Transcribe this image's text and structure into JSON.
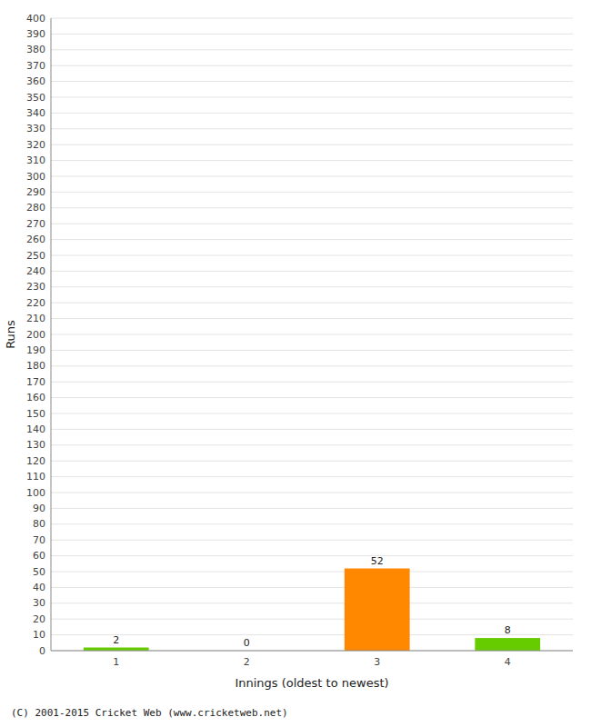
{
  "chart_data": {
    "type": "bar",
    "categories": [
      1,
      2,
      3,
      4
    ],
    "values": [
      2,
      0,
      52,
      8
    ],
    "colors": [
      "#66cc00",
      "#66cc00",
      "#ff8800",
      "#66cc00"
    ],
    "xlabel": "Innings (oldest to newest)",
    "ylabel": "Runs",
    "ylim": [
      0,
      400
    ],
    "yticks": [
      0,
      10,
      20,
      30,
      40,
      50,
      60,
      70,
      80,
      90,
      100,
      110,
      120,
      130,
      140,
      150,
      160,
      170,
      180,
      190,
      200,
      210,
      220,
      230,
      240,
      250,
      260,
      270,
      280,
      290,
      300,
      310,
      320,
      330,
      340,
      350,
      360,
      370,
      380,
      390,
      400
    ],
    "grid": true,
    "data_labels": true,
    "annotations": [
      "(C) 2001-2015 Cricket Web (www.cricketweb.net)"
    ]
  }
}
